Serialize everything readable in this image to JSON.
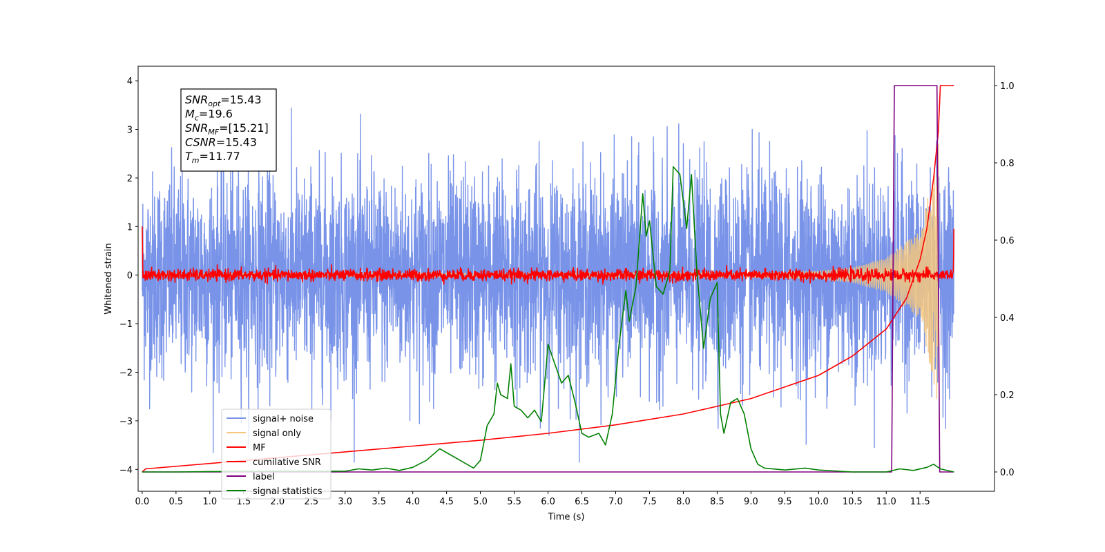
{
  "chart_data": {
    "type": "line",
    "xlabel": "Time (s)",
    "ylabel": "Whitened strain",
    "xlim": [
      -0.06,
      12.6
    ],
    "ylim": [
      -4.45,
      4.3
    ],
    "y2lim": [
      -0.05,
      1.05
    ],
    "x_ticks": [
      0.0,
      0.5,
      1.0,
      1.5,
      2.0,
      2.5,
      3.0,
      3.5,
      4.0,
      4.5,
      5.0,
      5.5,
      6.0,
      6.5,
      7.0,
      7.5,
      8.0,
      8.5,
      9.0,
      9.5,
      10.0,
      10.5,
      11.0,
      11.5
    ],
    "x_tick_labels": [
      "0.0",
      "0.5",
      "1.0",
      "1.5",
      "2.0",
      "2.5",
      "3.0",
      "3.5",
      "4.0",
      "4.5",
      "5.0",
      "5.5",
      "6.0",
      "6.5",
      "7.0",
      "7.5",
      "8.0",
      "8.5",
      "9.0",
      "9.5",
      "10.0",
      "10.5",
      "11.0",
      "11.5"
    ],
    "y_ticks": [
      -4,
      -3,
      -2,
      -1,
      0,
      1,
      2,
      3,
      4
    ],
    "y_tick_labels": [
      "−4",
      "−3",
      "−2",
      "−1",
      "0",
      "1",
      "2",
      "3",
      "4"
    ],
    "y2_ticks": [
      0.0,
      0.2,
      0.4,
      0.6,
      0.8,
      1.0
    ],
    "y2_tick_labels": [
      "0.0",
      "0.2",
      "0.4",
      "0.6",
      "0.8",
      "1.0"
    ],
    "grid": false,
    "legend_position": "lower-left",
    "annotation": {
      "lines": [
        {
          "sym": "SNR",
          "sub": "opt",
          "value": "=15.43"
        },
        {
          "sym": "M",
          "sub": "c",
          "value": "=19.6"
        },
        {
          "sym": "SNR",
          "sub": "MF",
          "value": "=[15.21]"
        },
        {
          "sym": "CSNR",
          "sub": "",
          "value": "=15.43"
        },
        {
          "sym": "T",
          "sub": "m",
          "value": "=11.77"
        }
      ]
    },
    "series": [
      {
        "name": "signal+ noise",
        "axis": "left",
        "color": "#7893e8",
        "kind": "noise",
        "x_range": [
          0.0,
          12.0
        ],
        "amplitude": 3.9,
        "min": -3.85,
        "max": 3.9
      },
      {
        "name": "signal only",
        "axis": "left",
        "color": "#f5c77e",
        "kind": "chirp",
        "x_range": [
          0.0,
          11.77
        ],
        "envelope": [
          [
            0.0,
            0.03
          ],
          [
            9.0,
            0.05
          ],
          [
            10.0,
            0.08
          ],
          [
            10.5,
            0.15
          ],
          [
            11.0,
            0.35
          ],
          [
            11.5,
            0.9
          ],
          [
            11.7,
            2.2
          ],
          [
            11.77,
            2.8
          ]
        ]
      },
      {
        "name": "MF",
        "axis": "left",
        "color": "#ff0000",
        "kind": "mf",
        "x_range": [
          0.0,
          12.0
        ],
        "start": 1.0,
        "end": 0.95,
        "noise_amplitude": 0.06
      },
      {
        "name": "cumilative SNR",
        "axis": "right",
        "color": "#ff0000",
        "kind": "line",
        "points": [
          [
            0.0,
            0.0
          ],
          [
            0.05,
            0.008
          ],
          [
            1.0,
            0.022
          ],
          [
            2.0,
            0.037
          ],
          [
            3.0,
            0.052
          ],
          [
            4.0,
            0.067
          ],
          [
            5.0,
            0.082
          ],
          [
            6.0,
            0.1
          ],
          [
            7.0,
            0.122
          ],
          [
            8.0,
            0.15
          ],
          [
            9.0,
            0.19
          ],
          [
            10.0,
            0.25
          ],
          [
            10.5,
            0.3
          ],
          [
            11.0,
            0.37
          ],
          [
            11.3,
            0.45
          ],
          [
            11.5,
            0.55
          ],
          [
            11.6,
            0.63
          ],
          [
            11.7,
            0.76
          ],
          [
            11.77,
            0.88
          ],
          [
            11.8,
            1.0
          ],
          [
            12.0,
            1.0
          ]
        ]
      },
      {
        "name": "label",
        "axis": "right",
        "color": "#800080",
        "kind": "line",
        "points": [
          [
            0.0,
            0.0
          ],
          [
            11.08,
            0.0
          ],
          [
            11.12,
            1.0
          ],
          [
            11.75,
            1.0
          ],
          [
            11.79,
            0.0
          ],
          [
            12.0,
            0.0
          ]
        ]
      },
      {
        "name": "signal statistics",
        "axis": "right",
        "color": "#008000",
        "kind": "line",
        "points": [
          [
            0.0,
            0.0
          ],
          [
            0.5,
            0.0
          ],
          [
            1.0,
            0.001
          ],
          [
            2.0,
            0.002
          ],
          [
            3.0,
            0.002
          ],
          [
            3.2,
            0.008
          ],
          [
            3.4,
            0.005
          ],
          [
            3.6,
            0.01
          ],
          [
            3.8,
            0.004
          ],
          [
            4.0,
            0.012
          ],
          [
            4.2,
            0.03
          ],
          [
            4.4,
            0.06
          ],
          [
            4.5,
            0.05
          ],
          [
            4.7,
            0.03
          ],
          [
            4.9,
            0.01
          ],
          [
            5.0,
            0.03
          ],
          [
            5.1,
            0.12
          ],
          [
            5.2,
            0.15
          ],
          [
            5.25,
            0.23
          ],
          [
            5.3,
            0.2
          ],
          [
            5.4,
            0.19
          ],
          [
            5.45,
            0.28
          ],
          [
            5.5,
            0.17
          ],
          [
            5.6,
            0.16
          ],
          [
            5.7,
            0.14
          ],
          [
            5.8,
            0.16
          ],
          [
            5.9,
            0.13
          ],
          [
            6.0,
            0.33
          ],
          [
            6.1,
            0.28
          ],
          [
            6.2,
            0.23
          ],
          [
            6.3,
            0.25
          ],
          [
            6.4,
            0.18
          ],
          [
            6.5,
            0.1
          ],
          [
            6.6,
            0.09
          ],
          [
            6.75,
            0.1
          ],
          [
            6.85,
            0.07
          ],
          [
            6.95,
            0.15
          ],
          [
            7.05,
            0.33
          ],
          [
            7.15,
            0.47
          ],
          [
            7.2,
            0.39
          ],
          [
            7.3,
            0.48
          ],
          [
            7.4,
            0.72
          ],
          [
            7.45,
            0.61
          ],
          [
            7.5,
            0.65
          ],
          [
            7.6,
            0.48
          ],
          [
            7.7,
            0.46
          ],
          [
            7.8,
            0.52
          ],
          [
            7.85,
            0.79
          ],
          [
            7.95,
            0.77
          ],
          [
            8.05,
            0.63
          ],
          [
            8.12,
            0.77
          ],
          [
            8.2,
            0.52
          ],
          [
            8.3,
            0.32
          ],
          [
            8.4,
            0.45
          ],
          [
            8.5,
            0.49
          ],
          [
            8.55,
            0.15
          ],
          [
            8.6,
            0.1
          ],
          [
            8.7,
            0.18
          ],
          [
            8.8,
            0.19
          ],
          [
            8.9,
            0.15
          ],
          [
            9.0,
            0.06
          ],
          [
            9.1,
            0.02
          ],
          [
            9.2,
            0.01
          ],
          [
            9.5,
            0.005
          ],
          [
            9.8,
            0.01
          ],
          [
            10.0,
            0.005
          ],
          [
            10.5,
            0.0
          ],
          [
            11.0,
            0.0
          ],
          [
            11.2,
            0.008
          ],
          [
            11.4,
            0.004
          ],
          [
            11.6,
            0.012
          ],
          [
            11.7,
            0.02
          ],
          [
            11.8,
            0.008
          ],
          [
            12.0,
            0.0
          ]
        ]
      }
    ]
  }
}
